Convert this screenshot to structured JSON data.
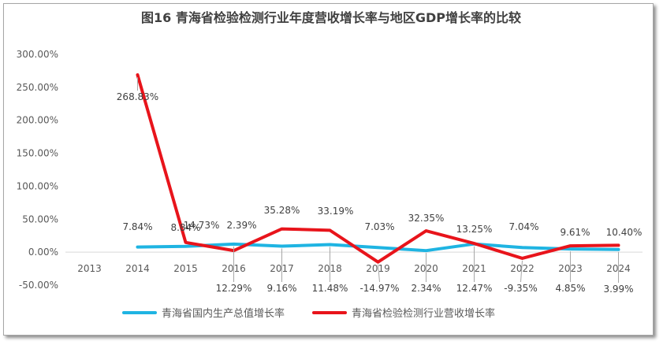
{
  "chart_data": {
    "type": "line",
    "title": "图16  青海省检验检测行业年度营收增长率与地区GDP增长率的比较",
    "categories": [
      "2013",
      "2014",
      "2015",
      "2016",
      "2017",
      "2018",
      "2019",
      "2020",
      "2021",
      "2022",
      "2023",
      "2024"
    ],
    "yticks": [
      "300.00%",
      "250.00%",
      "200.00%",
      "150.00%",
      "100.00%",
      "50.00%",
      "0.00%",
      "-50.00%"
    ],
    "ylim": [
      -50,
      300
    ],
    "grid": false,
    "legend_position": "bottom",
    "series": [
      {
        "name": "青海省国内生产总值增长率",
        "color": "#1fb4e2",
        "values": [
          null,
          7.84,
          8.84,
          12.29,
          9.16,
          11.48,
          7.03,
          2.34,
          12.47,
          7.04,
          4.85,
          3.99
        ],
        "labels": [
          null,
          "7.84%",
          "8.84%",
          "12.29%",
          "9.16%",
          "11.48%",
          "7.03%",
          "2.34%",
          "12.47%",
          "7.04%",
          "4.85%",
          "3.99%"
        ]
      },
      {
        "name": "青海省检验检测行业营收增长率",
        "color": "#e8141b",
        "values": [
          null,
          268.83,
          14.73,
          2.39,
          35.28,
          33.19,
          -14.97,
          32.35,
          13.25,
          -9.35,
          9.61,
          10.4
        ],
        "labels": [
          null,
          "268.83%",
          "14.73%",
          "2.39%",
          "35.28%",
          "33.19%",
          "-14.97%",
          "32.35%",
          "13.25%",
          "-9.35%",
          "9.61%",
          "10.40%"
        ]
      }
    ]
  }
}
